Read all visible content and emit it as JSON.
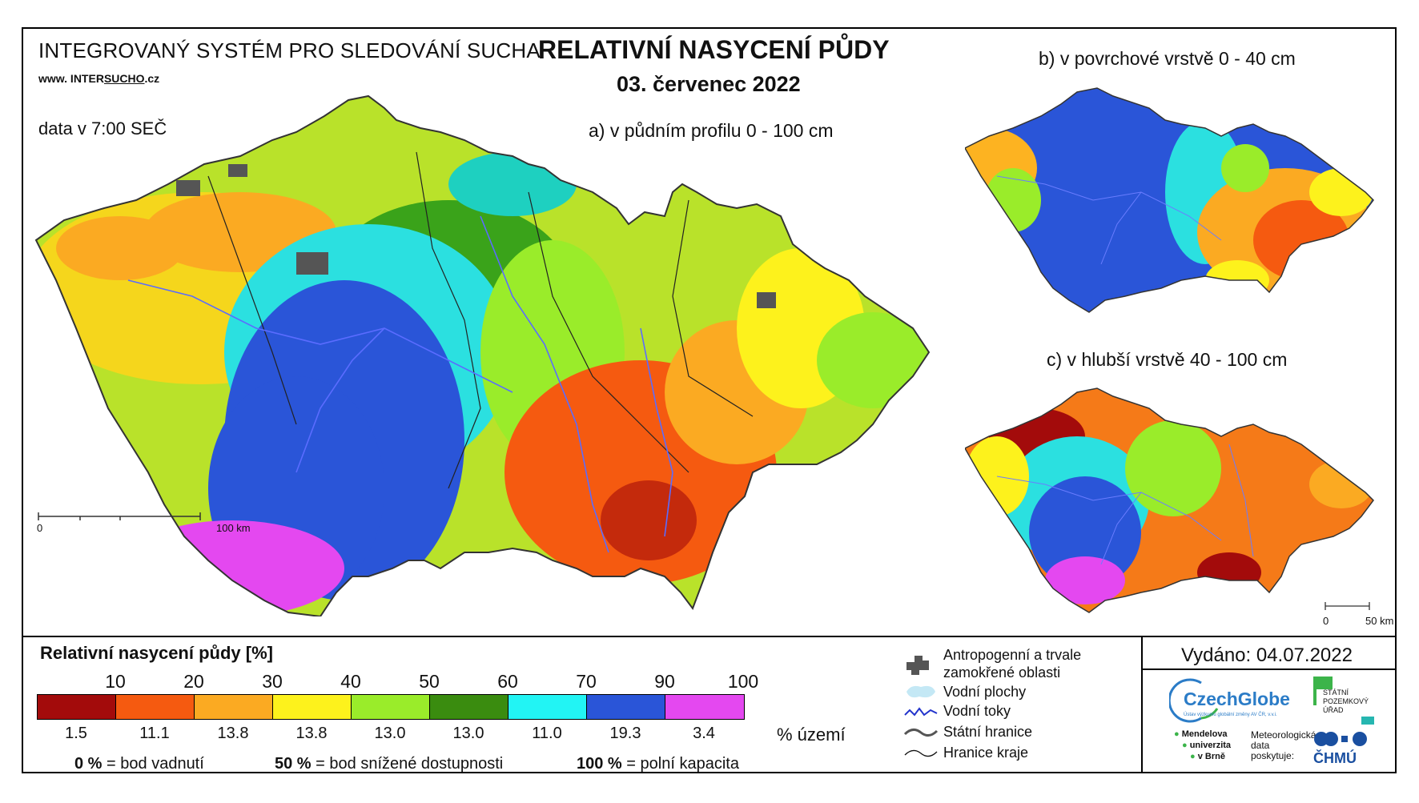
{
  "header": {
    "system_name": "INTEGROVANÝ SYSTÉM PRO SLEDOVÁNÍ SUCHA",
    "website_prefix": "www. INTER",
    "website_mid": "SUCHO",
    "website_suffix": ".cz",
    "data_time": "data v 7:00 SEČ",
    "title": "RELATIVNÍ NASYCENÍ PŮDY",
    "date": "03. červenec 2022"
  },
  "maps": {
    "a_label": "a) v půdním profilu 0 - 100 cm",
    "b_label": "b) v povrchové vrstvě 0 - 40 cm",
    "c_label": "c) v hlubší vrstvě 40 - 100 cm",
    "scale_main_start": "0",
    "scale_main_end": "100 km",
    "scale_small_start": "0",
    "scale_small_end": "50 km"
  },
  "legend": {
    "title": "Relativní nasycení půdy [%]",
    "ticks": [
      "10",
      "20",
      "30",
      "40",
      "50",
      "60",
      "70",
      "90",
      "100"
    ],
    "colors": [
      "#a30b0b",
      "#f55a10",
      "#fbaa22",
      "#fdf21c",
      "#9aec2a",
      "#3a8c0f",
      "#22f4f4",
      "#2a55d8",
      "#e448f0"
    ],
    "percentages": [
      "1.5",
      "11.1",
      "13.8",
      "13.8",
      "13.0",
      "13.0",
      "11.0",
      "19.3",
      "3.4"
    ],
    "percent_unit": "% území",
    "note_0_value": "0 %",
    "note_0_text": "= bod vadnutí",
    "note_50_value": "50 %",
    "note_50_text": "= bod snížené dostupnosti",
    "note_100_value": "100 %",
    "note_100_text": "= polní kapacita"
  },
  "map_legend": {
    "anthropogenic": "Antropogenní a trvale",
    "anthropogenic_2": "zamokřené oblasti",
    "water_areas": "Vodní plochy",
    "water_streams": "Vodní toky",
    "state_border": "Státní hranice",
    "region_border": "Hranice kraje"
  },
  "footer": {
    "issued": "Vydáno: 04.07.2022",
    "czechglobe": "CzechGlobe",
    "czechglobe_sub": "Ústav výzkumu globální změny AV ČR, v.v.i.",
    "spu_1": "STÁTNÍ",
    "spu_2": "POZEMKOVÝ",
    "spu_3": "ÚŘAD",
    "mendel_1": "Mendelova",
    "mendel_2": "univerzita",
    "mendel_3": "v Brně",
    "meteo_1": "Meteorologická",
    "meteo_2": "data",
    "meteo_3": "poskytuje:",
    "chmu": "ČHMÚ"
  }
}
